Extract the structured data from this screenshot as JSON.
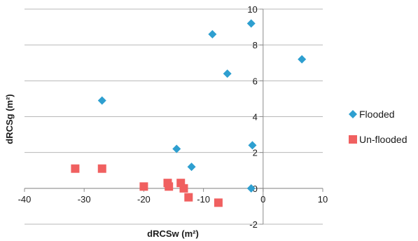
{
  "chart_data": {
    "type": "scatter",
    "xlabel": "dRCSw (m²)",
    "ylabel": "dRCSg (m²)",
    "xlim": [
      -40,
      10
    ],
    "ylim": [
      -2,
      10
    ],
    "x_ticks": [
      -40,
      -30,
      -20,
      -10,
      0,
      10
    ],
    "y_ticks": [
      -2,
      0,
      2,
      4,
      6,
      8,
      10
    ],
    "x_tick_labels": [
      "-40",
      "-30",
      "-20",
      "-10",
      "0",
      "10"
    ],
    "y_tick_labels": [
      "-2",
      "0",
      "2",
      "4",
      "6",
      "8",
      "10"
    ],
    "grid": "horizontal",
    "legend_position": "right",
    "series": [
      {
        "name": "Flooded",
        "marker": "diamond",
        "color": "#2E9FD0",
        "points": [
          [
            -27,
            4.9
          ],
          [
            -8.5,
            8.6
          ],
          [
            -2,
            9.2
          ],
          [
            6.5,
            7.2
          ],
          [
            -6,
            6.4
          ],
          [
            -14.5,
            2.2
          ],
          [
            -12,
            1.2
          ],
          [
            -1.8,
            2.4
          ],
          [
            -2,
            0
          ]
        ]
      },
      {
        "name": "Un-flooded",
        "marker": "square",
        "color": "#F06060",
        "points": [
          [
            -31.5,
            1.1
          ],
          [
            -27,
            1.1
          ],
          [
            -20,
            0.1
          ],
          [
            -16,
            0.3
          ],
          [
            -15.8,
            0.1
          ],
          [
            -13.8,
            0.3
          ],
          [
            -13.3,
            0
          ],
          [
            -12.5,
            -0.5
          ],
          [
            -7.5,
            -0.8
          ]
        ]
      }
    ]
  }
}
